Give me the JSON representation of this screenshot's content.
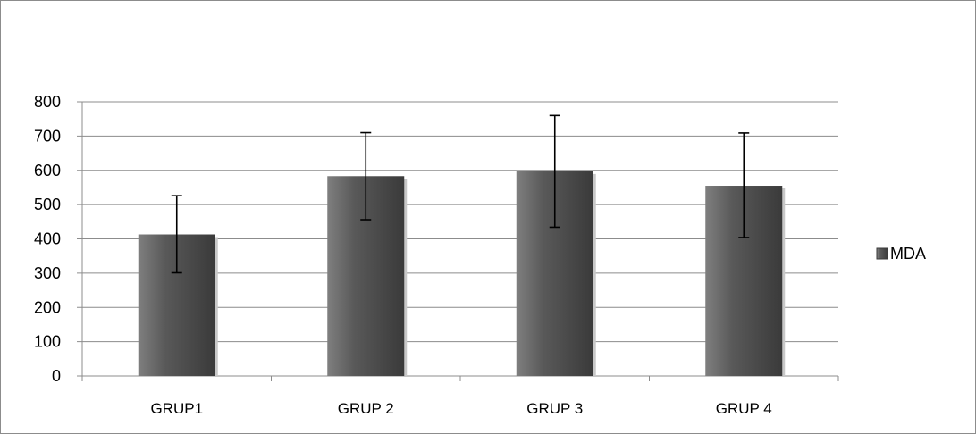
{
  "chart_data": {
    "type": "bar",
    "categories": [
      "GRUP1",
      "GRUP 2",
      "GRUP 3",
      "GRUP 4"
    ],
    "series": [
      {
        "name": "MDA",
        "values": [
          413,
          583,
          597,
          555
        ],
        "error_low": [
          301,
          456,
          434,
          404
        ],
        "error_high": [
          526,
          710,
          760,
          709
        ]
      }
    ],
    "ylim": [
      0,
      800
    ],
    "yticks": [
      0,
      100,
      200,
      300,
      400,
      500,
      600,
      700,
      800
    ],
    "grid": true,
    "legend": "right",
    "bar_color": "#595959",
    "bar_highlight": "#7f7f7f",
    "bar_shadow": "#3a3a3a"
  }
}
